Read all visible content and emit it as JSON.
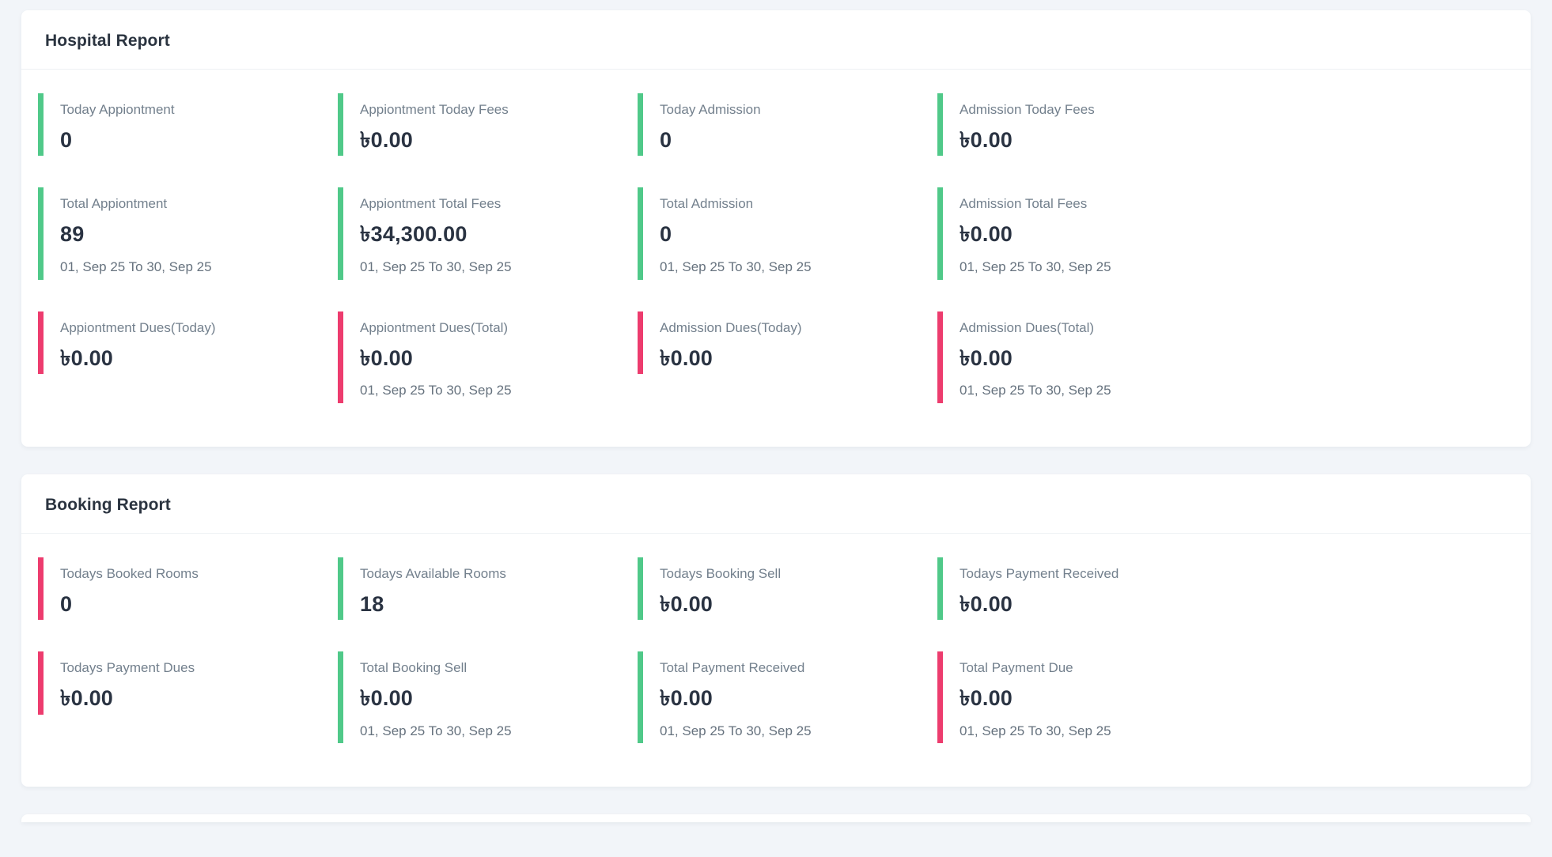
{
  "page": {
    "background": "#f2f5f9"
  },
  "colors": {
    "green": "#50c989",
    "pink": "#ed3c6e"
  },
  "date_range": "01, Sep 25 To 30, Sep 25",
  "cards": [
    {
      "title": "Hospital Report",
      "stats": [
        {
          "label": "Today Appiontment",
          "value": "0",
          "accent": "green",
          "period": ""
        },
        {
          "label": "Appiontment Today Fees",
          "value": "৳0.00",
          "accent": "green",
          "period": ""
        },
        {
          "label": "Today Admission",
          "value": "0",
          "accent": "green",
          "period": ""
        },
        {
          "label": "Admission Today Fees",
          "value": "৳0.00",
          "accent": "green",
          "period": ""
        },
        {
          "label": "Total Appiontment",
          "value": "89",
          "accent": "green",
          "period": "01, Sep 25 To 30, Sep 25"
        },
        {
          "label": "Appiontment Total Fees",
          "value": "৳34,300.00",
          "accent": "green",
          "period": "01, Sep 25 To 30, Sep 25"
        },
        {
          "label": "Total Admission",
          "value": "0",
          "accent": "green",
          "period": "01, Sep 25 To 30, Sep 25"
        },
        {
          "label": "Admission Total Fees",
          "value": "৳0.00",
          "accent": "green",
          "period": "01, Sep 25 To 30, Sep 25"
        },
        {
          "label": "Appiontment Dues(Today)",
          "value": "৳0.00",
          "accent": "pink",
          "period": ""
        },
        {
          "label": "Appiontment Dues(Total)",
          "value": "৳0.00",
          "accent": "pink",
          "period": "01, Sep 25 To 30, Sep 25"
        },
        {
          "label": "Admission Dues(Today)",
          "value": "৳0.00",
          "accent": "pink",
          "period": ""
        },
        {
          "label": "Admission Dues(Total)",
          "value": "৳0.00",
          "accent": "pink",
          "period": "01, Sep 25 To 30, Sep 25"
        }
      ]
    },
    {
      "title": "Booking Report",
      "stats": [
        {
          "label": "Todays Booked Rooms",
          "value": "0",
          "accent": "pink",
          "period": ""
        },
        {
          "label": "Todays Available Rooms",
          "value": "18",
          "accent": "green",
          "period": ""
        },
        {
          "label": "Todays Booking Sell",
          "value": "৳0.00",
          "accent": "green",
          "period": ""
        },
        {
          "label": "Todays Payment Received",
          "value": "৳0.00",
          "accent": "green",
          "period": ""
        },
        {
          "label": "Todays Payment Dues",
          "value": "৳0.00",
          "accent": "pink",
          "period": ""
        },
        {
          "label": "Total Booking Sell",
          "value": "৳0.00",
          "accent": "green",
          "period": "01, Sep 25 To 30, Sep 25"
        },
        {
          "label": "Total Payment Received",
          "value": "৳0.00",
          "accent": "green",
          "period": "01, Sep 25 To 30, Sep 25"
        },
        {
          "label": "Total Payment Due",
          "value": "৳0.00",
          "accent": "pink",
          "period": "01, Sep 25 To 30, Sep 25"
        }
      ]
    }
  ]
}
